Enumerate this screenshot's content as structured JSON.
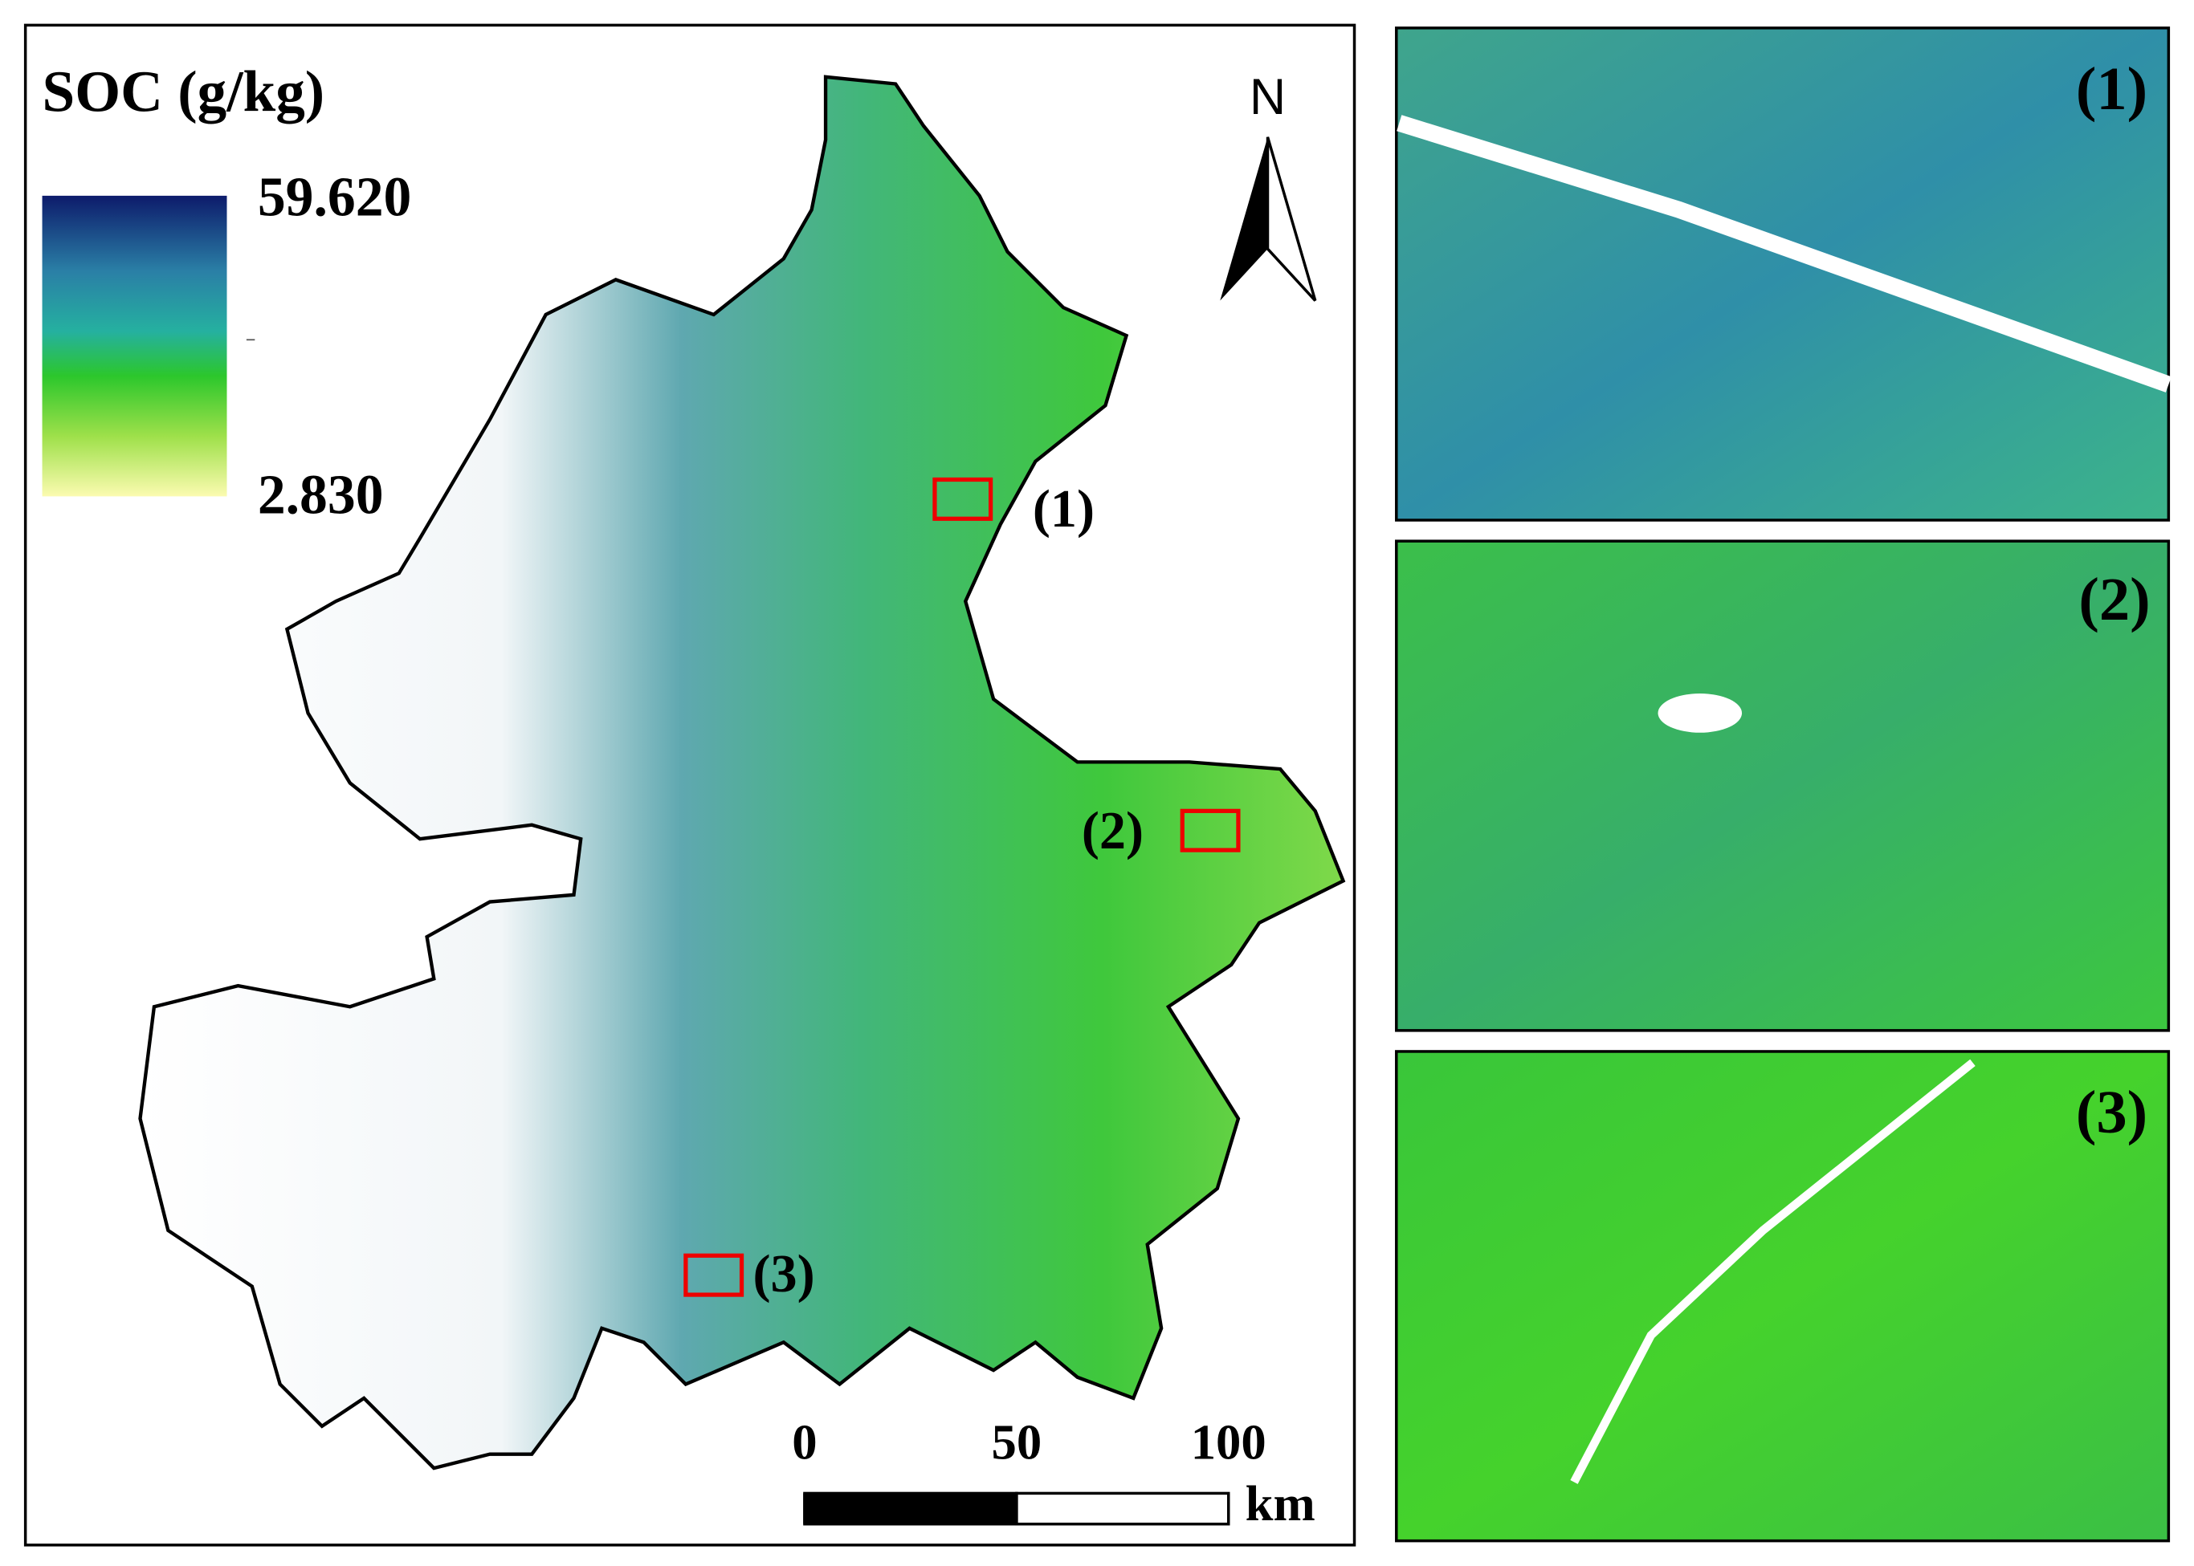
{
  "title": "SOC (g/kg)",
  "legend": {
    "max": "59.620",
    "min": "2.830"
  },
  "north": "N",
  "regions": [
    {
      "label": "(1)"
    },
    {
      "label": "(2)"
    },
    {
      "label": "(3)"
    }
  ],
  "scale_bar": {
    "ticks": [
      0,
      50,
      100
    ],
    "unit": "km"
  }
}
